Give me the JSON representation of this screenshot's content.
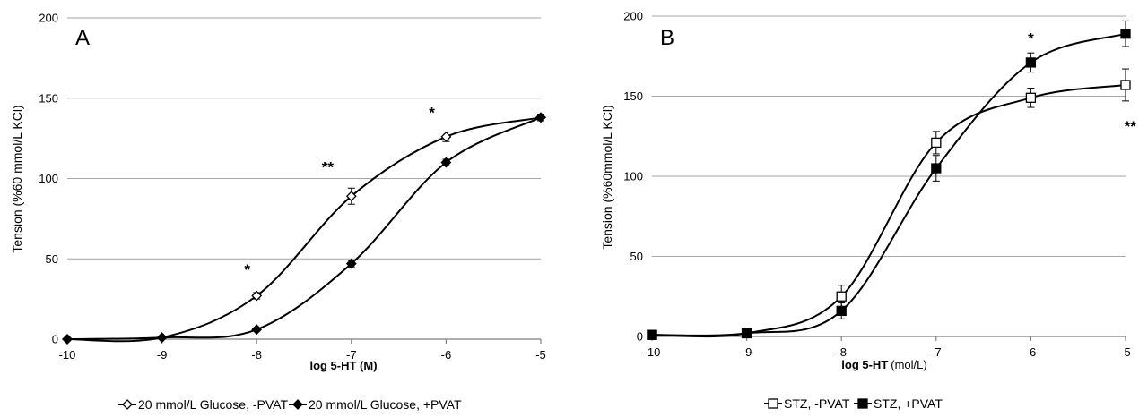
{
  "chart_data": [
    {
      "type": "line",
      "panel_label": "A",
      "xlabel": "log 5-HT (M)",
      "ylabel": "Tension (%60 mmol/L KCl)",
      "xlim": [
        -10,
        -5
      ],
      "ylim": [
        0,
        200
      ],
      "x_ticks": [
        "-10",
        "-9",
        "-8",
        "-7",
        "-6",
        "-5"
      ],
      "y_ticks": [
        "0",
        "50",
        "100",
        "150",
        "200"
      ],
      "grid": "horizontal",
      "legend_position": "bottom",
      "series": [
        {
          "name": "20 mmol/L Glucose, -PVAT",
          "marker": "open-diamond",
          "x": [
            -10,
            -9,
            -8,
            -7,
            -6,
            -5
          ],
          "y": [
            0,
            1,
            27,
            89,
            126,
            138
          ],
          "err": [
            0,
            0,
            2,
            5,
            3,
            2
          ]
        },
        {
          "name": "20 mmol/L Glucose, +PVAT",
          "marker": "filled-diamond",
          "x": [
            -10,
            -9,
            -8,
            -7,
            -6,
            -5
          ],
          "y": [
            0,
            1,
            6,
            47,
            110,
            138
          ],
          "err": [
            0,
            0,
            1,
            2,
            2,
            2
          ]
        }
      ],
      "annotations": [
        {
          "text": "*",
          "x": -8.1,
          "y": 40
        },
        {
          "text": "**",
          "x": -7.25,
          "y": 104
        },
        {
          "text": "*",
          "x": -6.15,
          "y": 138
        }
      ]
    },
    {
      "type": "line",
      "panel_label": "B",
      "xlabel": "log 5-HT",
      "xlabel_unit": "(mol/L)",
      "ylabel": "Tension (%60mmol/L KCl)",
      "xlim": [
        -10,
        -5
      ],
      "ylim": [
        0,
        200
      ],
      "x_ticks": [
        "-10",
        "-9",
        "-8",
        "-7",
        "-6",
        "-5"
      ],
      "y_ticks": [
        "0",
        "50",
        "100",
        "150",
        "200"
      ],
      "grid": "horizontal",
      "legend_position": "bottom",
      "series": [
        {
          "name": "STZ, -PVAT",
          "marker": "open-square",
          "x": [
            -10,
            -9,
            -8,
            -7,
            -6,
            -5
          ],
          "y": [
            1,
            2,
            25,
            121,
            149,
            157
          ],
          "err": [
            0,
            0,
            7,
            7,
            6,
            10
          ]
        },
        {
          "name": "STZ, +PVAT",
          "marker": "filled-square",
          "x": [
            -10,
            -9,
            -8,
            -7,
            -6,
            -5
          ],
          "y": [
            1,
            2,
            16,
            105,
            171,
            189
          ],
          "err": [
            0,
            0,
            5,
            8,
            6,
            8
          ]
        }
      ],
      "annotations": [
        {
          "text": "*",
          "x": -6.0,
          "y": 183
        },
        {
          "text": "**",
          "x": -4.95,
          "y": 128
        }
      ]
    }
  ]
}
